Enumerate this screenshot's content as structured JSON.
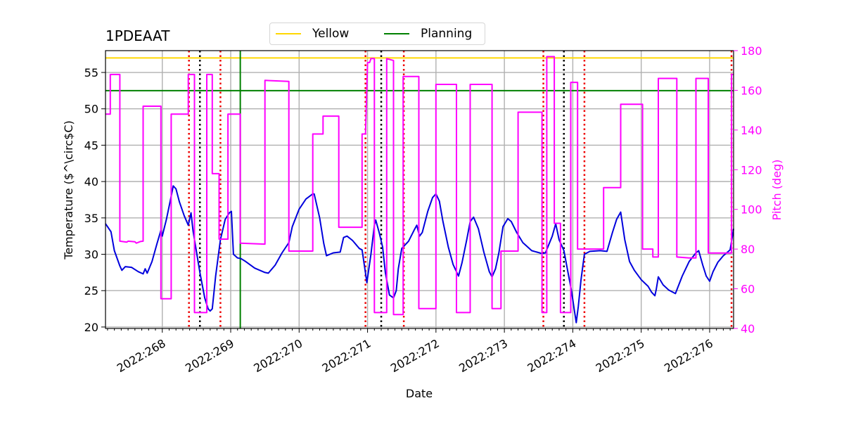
{
  "chart_data": {
    "type": "line",
    "title": "1PDEAAT",
    "xlabel": "Date",
    "ylabel": "Temperature ($^\\circ$C)",
    "ylabel_display": "Temperature ($^\\circ$C)",
    "y2label": "Pitch (deg)",
    "xlim": [
      267.17,
      276.35
    ],
    "ylim": [
      19.8,
      58.0
    ],
    "y2lim": [
      40,
      180
    ],
    "x_ticks": [
      268,
      269,
      270,
      271,
      272,
      273,
      274,
      275,
      276
    ],
    "x_tick_labels": [
      "2022:268",
      "2022:269",
      "2022:270",
      "2022:271",
      "2022:272",
      "2022:273",
      "2022:274",
      "2022:275",
      "2022:276"
    ],
    "y_ticks": [
      20,
      25,
      30,
      35,
      40,
      45,
      50,
      55
    ],
    "y_tick_labels": [
      "20",
      "25",
      "30",
      "35",
      "40",
      "45",
      "50",
      "55"
    ],
    "y2_ticks": [
      40,
      60,
      80,
      100,
      120,
      140,
      160,
      180
    ],
    "y2_tick_labels": [
      "40",
      "60",
      "80",
      "100",
      "120",
      "140",
      "160",
      "180"
    ],
    "grid": true,
    "legend": [
      {
        "name": "Yellow",
        "color": "#ffd700"
      },
      {
        "name": "Planning",
        "color": "#008000"
      }
    ],
    "hlines": [
      {
        "name": "Yellow",
        "y": 57.0,
        "color": "#ffd700"
      },
      {
        "name": "Planning",
        "y": 52.5,
        "color": "#008000"
      }
    ],
    "vline_planning": {
      "x": 269.14,
      "color": "#008000"
    },
    "vlines_black_dotted": [
      268.55,
      271.2,
      273.87
    ],
    "vlines_red_dotted": [
      268.39,
      268.85,
      270.97,
      271.53,
      273.57,
      274.17,
      276.32
    ],
    "series": [
      {
        "name": "Temperature",
        "axis": "left",
        "color": "#0000dd",
        "points": [
          [
            267.17,
            34.2
          ],
          [
            267.25,
            33.1
          ],
          [
            267.3,
            30.5
          ],
          [
            267.38,
            28.4
          ],
          [
            267.41,
            27.8
          ],
          [
            267.46,
            28.3
          ],
          [
            267.55,
            28.2
          ],
          [
            267.65,
            27.6
          ],
          [
            267.72,
            27.3
          ],
          [
            267.75,
            28.0
          ],
          [
            267.78,
            27.4
          ],
          [
            267.85,
            29.0
          ],
          [
            267.92,
            31.4
          ],
          [
            267.98,
            33.3
          ],
          [
            268.0,
            32.5
          ],
          [
            268.06,
            34.8
          ],
          [
            268.12,
            37.5
          ],
          [
            268.16,
            39.4
          ],
          [
            268.2,
            39.0
          ],
          [
            268.25,
            37.2
          ],
          [
            268.32,
            35.3
          ],
          [
            268.38,
            34.0
          ],
          [
            268.42,
            35.7
          ],
          [
            268.45,
            33.2
          ],
          [
            268.5,
            30.3
          ],
          [
            268.55,
            27.5
          ],
          [
            268.62,
            24.0
          ],
          [
            268.67,
            22.5
          ],
          [
            268.7,
            22.2
          ],
          [
            268.73,
            22.5
          ],
          [
            268.78,
            27.0
          ],
          [
            268.85,
            32.0
          ],
          [
            268.92,
            34.8
          ],
          [
            268.98,
            35.7
          ],
          [
            269.01,
            35.9
          ],
          [
            269.04,
            30.0
          ],
          [
            269.1,
            29.5
          ],
          [
            269.15,
            29.4
          ],
          [
            269.22,
            29.0
          ],
          [
            269.35,
            28.1
          ],
          [
            269.5,
            27.5
          ],
          [
            269.55,
            27.4
          ],
          [
            269.65,
            28.5
          ],
          [
            269.75,
            30.2
          ],
          [
            269.85,
            31.6
          ],
          [
            269.9,
            33.8
          ],
          [
            270.0,
            36.2
          ],
          [
            270.1,
            37.6
          ],
          [
            270.2,
            38.3
          ],
          [
            270.22,
            38.3
          ],
          [
            270.3,
            35.0
          ],
          [
            270.36,
            31.5
          ],
          [
            270.4,
            29.8
          ],
          [
            270.5,
            30.2
          ],
          [
            270.6,
            30.3
          ],
          [
            270.65,
            32.3
          ],
          [
            270.7,
            32.5
          ],
          [
            270.78,
            31.9
          ],
          [
            270.88,
            30.8
          ],
          [
            270.92,
            30.6
          ],
          [
            270.97,
            27.4
          ],
          [
            270.99,
            26.1
          ],
          [
            271.05,
            30.0
          ],
          [
            271.1,
            34.0
          ],
          [
            271.12,
            34.7
          ],
          [
            271.17,
            33.0
          ],
          [
            271.22,
            31.0
          ],
          [
            271.26,
            27.5
          ],
          [
            271.32,
            24.4
          ],
          [
            271.38,
            24.0
          ],
          [
            271.42,
            25.0
          ],
          [
            271.45,
            28.0
          ],
          [
            271.5,
            30.8
          ],
          [
            271.55,
            31.3
          ],
          [
            271.6,
            31.8
          ],
          [
            271.68,
            33.3
          ],
          [
            271.72,
            34.0
          ],
          [
            271.76,
            32.5
          ],
          [
            271.8,
            33.0
          ],
          [
            271.88,
            35.9
          ],
          [
            271.95,
            37.8
          ],
          [
            272.0,
            38.3
          ],
          [
            272.05,
            37.3
          ],
          [
            272.1,
            34.6
          ],
          [
            272.18,
            31.0
          ],
          [
            272.25,
            28.6
          ],
          [
            272.33,
            27.0
          ],
          [
            272.38,
            28.8
          ],
          [
            272.45,
            32.0
          ],
          [
            272.5,
            34.5
          ],
          [
            272.55,
            35.1
          ],
          [
            272.62,
            33.5
          ],
          [
            272.7,
            30.3
          ],
          [
            272.78,
            27.6
          ],
          [
            272.82,
            26.9
          ],
          [
            272.87,
            28.0
          ],
          [
            272.92,
            30.2
          ],
          [
            272.98,
            33.8
          ],
          [
            273.05,
            34.9
          ],
          [
            273.1,
            34.5
          ],
          [
            273.18,
            33.0
          ],
          [
            273.27,
            31.6
          ],
          [
            273.4,
            30.5
          ],
          [
            273.55,
            30.1
          ],
          [
            273.6,
            30.2
          ],
          [
            273.7,
            32.5
          ],
          [
            273.75,
            34.2
          ],
          [
            273.8,
            32.0
          ],
          [
            273.87,
            30.5
          ],
          [
            273.92,
            28.0
          ],
          [
            273.98,
            25.0
          ],
          [
            274.02,
            22.5
          ],
          [
            274.05,
            20.6
          ],
          [
            274.08,
            22.8
          ],
          [
            274.12,
            26.5
          ],
          [
            274.17,
            30.0
          ],
          [
            274.25,
            30.4
          ],
          [
            274.4,
            30.5
          ],
          [
            274.5,
            30.4
          ],
          [
            274.58,
            33.0
          ],
          [
            274.64,
            34.8
          ],
          [
            274.7,
            35.8
          ],
          [
            274.76,
            32.0
          ],
          [
            274.83,
            29.0
          ],
          [
            274.9,
            27.8
          ],
          [
            275.0,
            26.5
          ],
          [
            275.1,
            25.6
          ],
          [
            275.15,
            24.8
          ],
          [
            275.2,
            24.3
          ],
          [
            275.22,
            25.2
          ],
          [
            275.25,
            26.9
          ],
          [
            275.32,
            25.8
          ],
          [
            275.4,
            25.1
          ],
          [
            275.5,
            24.6
          ],
          [
            275.6,
            27.0
          ],
          [
            275.7,
            29.0
          ],
          [
            275.8,
            30.2
          ],
          [
            275.84,
            30.5
          ],
          [
            275.9,
            28.5
          ],
          [
            275.95,
            27.0
          ],
          [
            276.0,
            26.3
          ],
          [
            276.05,
            27.6
          ],
          [
            276.12,
            28.9
          ],
          [
            276.2,
            29.8
          ],
          [
            276.3,
            30.6
          ],
          [
            276.35,
            33.5
          ]
        ]
      },
      {
        "name": "Pitch",
        "axis": "right",
        "color": "#ff00ff",
        "points": [
          [
            267.17,
            148
          ],
          [
            267.24,
            148
          ],
          [
            267.24,
            168
          ],
          [
            267.38,
            168
          ],
          [
            267.38,
            84
          ],
          [
            267.48,
            83.5
          ],
          [
            267.5,
            84
          ],
          [
            267.6,
            83.7
          ],
          [
            267.62,
            83
          ],
          [
            267.68,
            83.8
          ],
          [
            267.72,
            84
          ],
          [
            267.72,
            152
          ],
          [
            267.98,
            152
          ],
          [
            267.98,
            55
          ],
          [
            268.13,
            55
          ],
          [
            268.13,
            148
          ],
          [
            268.38,
            148
          ],
          [
            268.38,
            168
          ],
          [
            268.47,
            168
          ],
          [
            268.47,
            48
          ],
          [
            268.65,
            48
          ],
          [
            268.65,
            168
          ],
          [
            268.73,
            168
          ],
          [
            268.73,
            118
          ],
          [
            268.83,
            118
          ],
          [
            268.83,
            85
          ],
          [
            268.96,
            85
          ],
          [
            268.96,
            148
          ],
          [
            269.14,
            148
          ],
          [
            269.14,
            83
          ],
          [
            269.5,
            82.5
          ],
          [
            269.5,
            165
          ],
          [
            269.85,
            164.5
          ],
          [
            269.85,
            79
          ],
          [
            270.2,
            79
          ],
          [
            270.2,
            138
          ],
          [
            270.35,
            138
          ],
          [
            270.35,
            147
          ],
          [
            270.58,
            147
          ],
          [
            270.58,
            91
          ],
          [
            270.92,
            91
          ],
          [
            270.92,
            138
          ],
          [
            270.97,
            138
          ],
          [
            271.0,
            174
          ],
          [
            271.03,
            174
          ],
          [
            271.05,
            176
          ],
          [
            271.1,
            176
          ],
          [
            271.1,
            48
          ],
          [
            271.28,
            48
          ],
          [
            271.28,
            176
          ],
          [
            271.38,
            175
          ],
          [
            271.38,
            47
          ],
          [
            271.52,
            47
          ],
          [
            271.52,
            167
          ],
          [
            271.75,
            167
          ],
          [
            271.75,
            50
          ],
          [
            272.0,
            50
          ],
          [
            272.0,
            163
          ],
          [
            272.3,
            163
          ],
          [
            272.3,
            48
          ],
          [
            272.5,
            48
          ],
          [
            272.5,
            163
          ],
          [
            272.82,
            163
          ],
          [
            272.82,
            50
          ],
          [
            272.95,
            50
          ],
          [
            272.95,
            79
          ],
          [
            273.2,
            79
          ],
          [
            273.2,
            149
          ],
          [
            273.55,
            149
          ],
          [
            273.55,
            48
          ],
          [
            273.62,
            48
          ],
          [
            273.62,
            177
          ],
          [
            273.73,
            177
          ],
          [
            273.73,
            93
          ],
          [
            273.82,
            93
          ],
          [
            273.82,
            48
          ],
          [
            273.97,
            48
          ],
          [
            273.97,
            164
          ],
          [
            274.07,
            164
          ],
          [
            274.07,
            80
          ],
          [
            274.45,
            80
          ],
          [
            274.45,
            111
          ],
          [
            274.7,
            111
          ],
          [
            274.7,
            153
          ],
          [
            275.02,
            153
          ],
          [
            275.02,
            80
          ],
          [
            275.17,
            80
          ],
          [
            275.17,
            76
          ],
          [
            275.25,
            76
          ],
          [
            275.25,
            166
          ],
          [
            275.52,
            166
          ],
          [
            275.52,
            76
          ],
          [
            275.7,
            75.5
          ],
          [
            275.8,
            75.5
          ],
          [
            275.8,
            166
          ],
          [
            275.98,
            166
          ],
          [
            275.98,
            78
          ],
          [
            276.32,
            78
          ],
          [
            276.32,
            168
          ],
          [
            276.35,
            168
          ]
        ]
      }
    ]
  }
}
